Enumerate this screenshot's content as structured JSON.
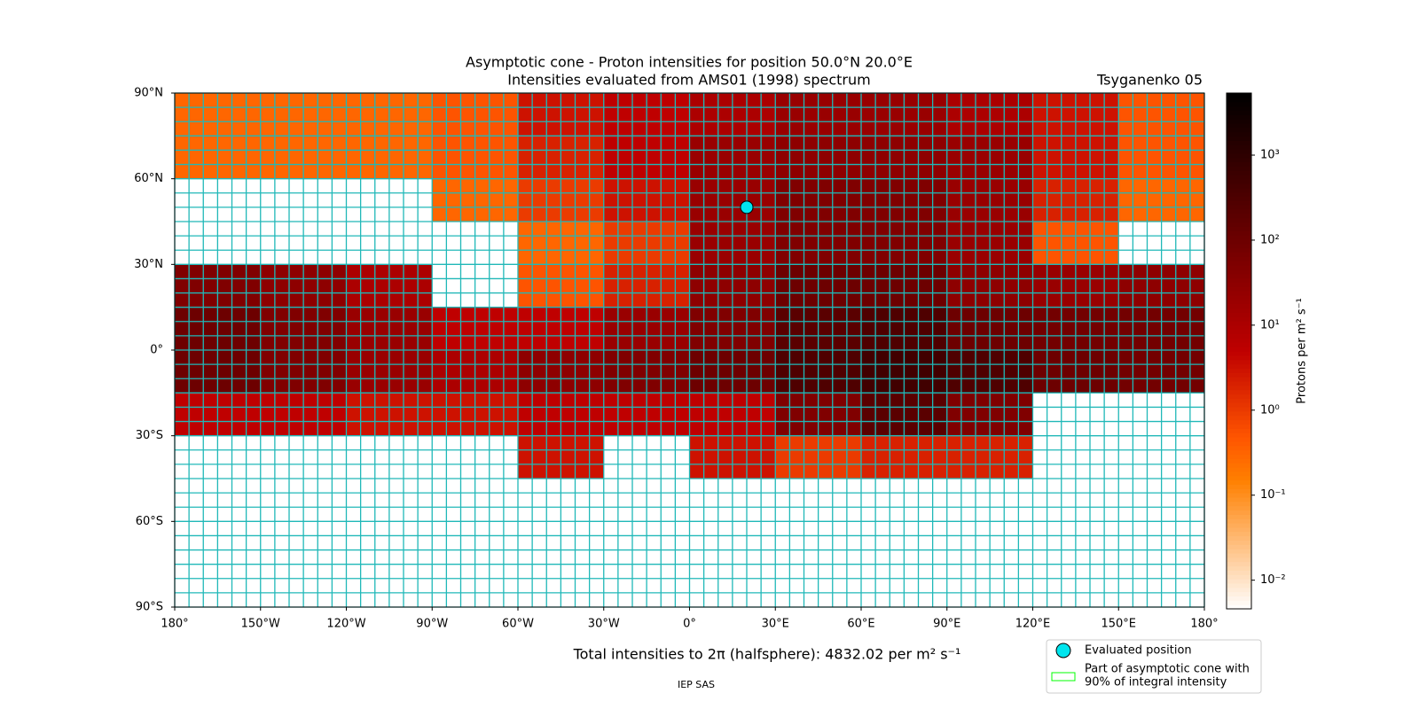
{
  "chart_data": {
    "type": "heatmap",
    "title": "Asymptotic cone - Proton intensities for position 50.0°N 20.0°E",
    "subtitle": "Intensities evaluated from AMS01 (1998) spectrum",
    "model": "Tsyganenko 05",
    "footer": "Total intensities to 2π (halfsphere): 4832.02 per m² s⁻¹",
    "credit": "IEP SAS",
    "colorbar_label": "Protons per m² s⁻¹",
    "xlim": [
      -180,
      180
    ],
    "ylim": [
      -90,
      90
    ],
    "xticks": [
      {
        "value": -180,
        "label": "180°"
      },
      {
        "value": -150,
        "label": "150°W"
      },
      {
        "value": -120,
        "label": "120°W"
      },
      {
        "value": -90,
        "label": "90°W"
      },
      {
        "value": -60,
        "label": "60°W"
      },
      {
        "value": -30,
        "label": "30°W"
      },
      {
        "value": 0,
        "label": "0°"
      },
      {
        "value": 30,
        "label": "30°E"
      },
      {
        "value": 60,
        "label": "60°E"
      },
      {
        "value": 90,
        "label": "90°E"
      },
      {
        "value": 120,
        "label": "120°E"
      },
      {
        "value": 150,
        "label": "150°E"
      },
      {
        "value": 180,
        "label": "180°"
      }
    ],
    "yticks": [
      {
        "value": 90,
        "label": "90°N"
      },
      {
        "value": 60,
        "label": "60°N"
      },
      {
        "value": 30,
        "label": "30°N"
      },
      {
        "value": 0,
        "label": "0°"
      },
      {
        "value": -30,
        "label": "30°S"
      },
      {
        "value": -60,
        "label": "60°S"
      },
      {
        "value": -90,
        "label": "90°S"
      }
    ],
    "clim": [
      0.0046,
      5370
    ],
    "log_color": true,
    "cticks": [
      {
        "value": 0.01,
        "label": "10⁻²"
      },
      {
        "value": 0.1,
        "label": "10⁻¹"
      },
      {
        "value": 1,
        "label": "10⁰"
      },
      {
        "value": 10,
        "label": "10¹"
      },
      {
        "value": 100,
        "label": "10²"
      },
      {
        "value": 1000,
        "label": "10³"
      }
    ],
    "lon_edges": [
      -180,
      -150,
      -120,
      -90,
      -60,
      -30,
      0,
      30,
      60,
      90,
      120,
      150,
      180
    ],
    "lat_edges": [
      90,
      75,
      60,
      45,
      30,
      15,
      0,
      -15,
      -30,
      -45,
      -60,
      -75,
      -90
    ],
    "values": [
      [
        0.3,
        0.3,
        0.3,
        0.5,
        3,
        5,
        10,
        20,
        20,
        10,
        3,
        0.5
      ],
      [
        0.3,
        0.3,
        0.3,
        0.5,
        2,
        5,
        20,
        30,
        30,
        20,
        3,
        0.5
      ],
      [
        null,
        null,
        null,
        0.3,
        1,
        3,
        20,
        50,
        50,
        20,
        2,
        0.3
      ],
      [
        null,
        null,
        null,
        null,
        0.3,
        1,
        20,
        50,
        50,
        20,
        0.5,
        null
      ],
      [
        50,
        30,
        10,
        null,
        0.5,
        2,
        30,
        100,
        100,
        30,
        20,
        30
      ],
      [
        100,
        50,
        20,
        5,
        5,
        20,
        50,
        200,
        300,
        100,
        80,
        80
      ],
      [
        100,
        50,
        20,
        10,
        30,
        50,
        100,
        300,
        500,
        300,
        100,
        80
      ],
      [
        5,
        5,
        3,
        3,
        5,
        5,
        5,
        50,
        200,
        50,
        null,
        null
      ],
      [
        null,
        null,
        null,
        null,
        3,
        null,
        3,
        1,
        2,
        2,
        null,
        null
      ],
      [
        null,
        null,
        null,
        null,
        null,
        null,
        null,
        null,
        null,
        null,
        null,
        null
      ],
      [
        null,
        null,
        null,
        null,
        null,
        null,
        null,
        null,
        null,
        null,
        null,
        null
      ],
      [
        null,
        null,
        null,
        null,
        null,
        null,
        null,
        null,
        null,
        null,
        null,
        null
      ]
    ],
    "position": {
      "lat": 50,
      "lon": 20,
      "color": "#00e5ee"
    },
    "legend": {
      "position": "Evaluated position",
      "cone": [
        "Part of asymptotic cone with",
        "90% of integral intensity"
      ],
      "cone_color": "#00ff00"
    }
  }
}
